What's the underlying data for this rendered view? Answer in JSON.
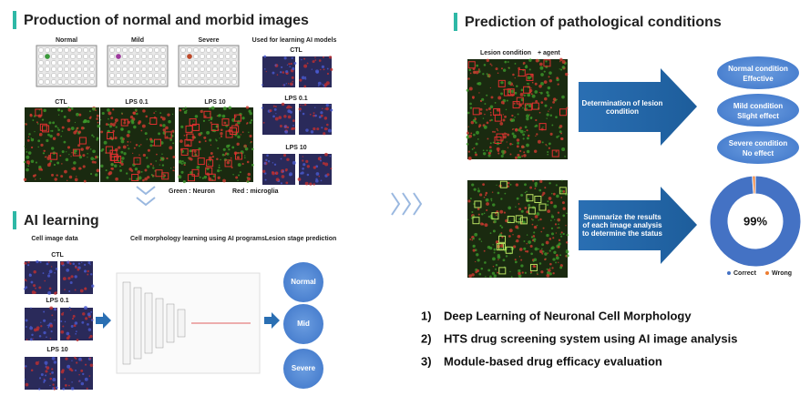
{
  "left": {
    "title": "Production of normal and morbid images",
    "plates": [
      "Normal",
      "Mild",
      "Severe"
    ],
    "used_label": "Used for learning AI models",
    "used_groups": [
      "CTL",
      "LPS 0.1",
      "LPS 10"
    ],
    "image_labels": [
      "CTL",
      "LPS 0.1",
      "LPS 10"
    ],
    "legend_green": "Green : Neuron",
    "legend_red": "Red : microglia"
  },
  "ai": {
    "title": "AI learning",
    "col1": "Cell image data",
    "col2": "Cell morphology learning using AI programs",
    "col3": "Lesion stage prediction",
    "groups": [
      "CTL",
      "LPS 0.1",
      "LPS 10"
    ],
    "predictions": [
      "Normal",
      "Mid",
      "Severe"
    ]
  },
  "right": {
    "title": "Prediction of pathological conditions",
    "image_label": "Lesion condition",
    "image_label_agent": "+ agent",
    "arrow1": "Determination of lesion condition",
    "conditions": [
      {
        "name": "Normal condition",
        "effect": "Effective"
      },
      {
        "name": "Mild condition",
        "effect": "Slight effect"
      },
      {
        "name": "Severe condition",
        "effect": "No effect"
      }
    ],
    "arrow2": "Summarize the results of each image analysis to determine the status",
    "donut": {
      "center_label": "99%",
      "values": [
        99,
        1
      ],
      "labels": [
        "Correct",
        "Wrong"
      ],
      "colors": [
        "#4472c4",
        "#ed7d31"
      ]
    }
  },
  "list": [
    {
      "num": "1)",
      "text": "Deep Learning of Neuronal Cell Morphology"
    },
    {
      "num": "2)",
      "text": "HTS drug screening system using AI image analysis"
    },
    {
      "num": "3)",
      "text": "Module-based drug efficacy evaluation"
    }
  ]
}
